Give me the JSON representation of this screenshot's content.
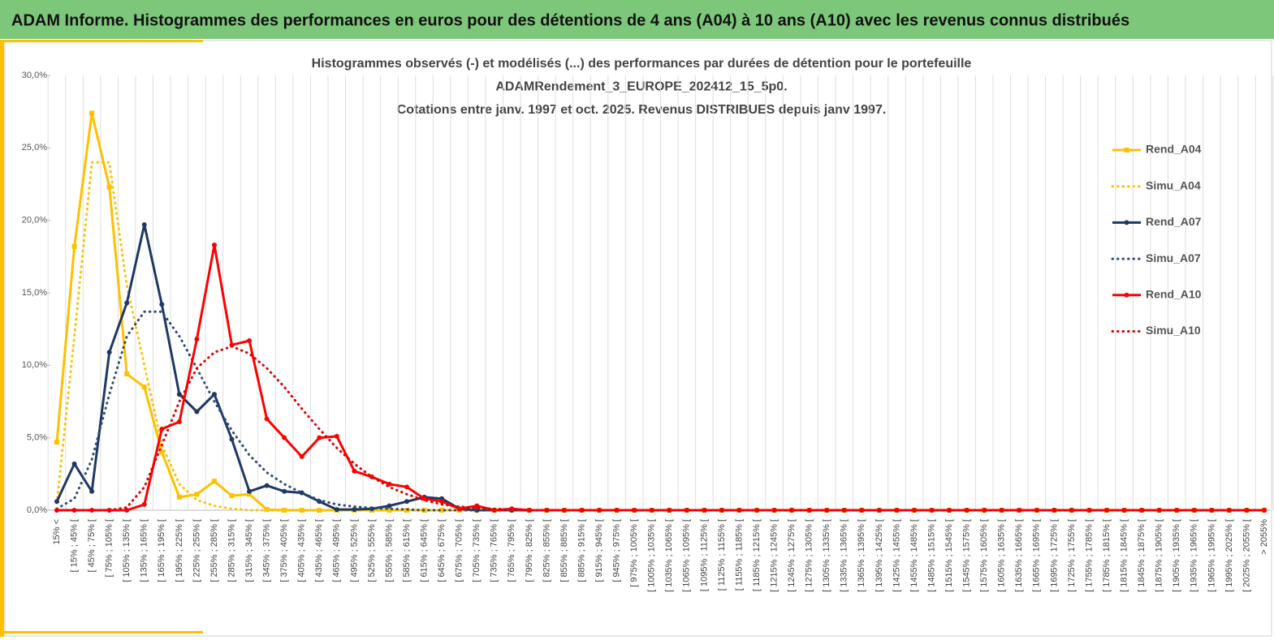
{
  "header": {
    "title": "ADAM Informe. Histogrammes des performances en euros pour des détentions de 4 ans (A04) à 10 ans (A10) avec les revenus connus distribués"
  },
  "chart_data": {
    "type": "line",
    "title": [
      "Histogrammes observés (-) et modélisés (...) des performances par durées de détention pour le portefeuille",
      "ADAMRendement_3_EUROPE_202412_15_5p0.",
      "Cotations entre janv. 1997 et oct. 2025. Revenus DISTRIBUES depuis janv 1997."
    ],
    "categories": [
      "15% <",
      "[ 15% ; 45% [",
      "[ 45% ; 75% [",
      "[ 75% ; 105% [",
      "[ 105% ; 135% [",
      "[ 135% ; 165% [",
      "[ 165% ; 195% [",
      "[ 195% ; 225% [",
      "[ 225% ; 255% [",
      "[ 255% ; 285% [",
      "[ 285% ; 315% [",
      "[ 315% ; 345% [",
      "[ 345% ; 375% [",
      "[ 375% ; 405% [",
      "[ 405% ; 435% [",
      "[ 435% ; 465% [",
      "[ 465% ; 495% [",
      "[ 495% ; 525% [",
      "[ 525% ; 555% [",
      "[ 555% ; 585% [",
      "[ 585% ; 615% [",
      "[ 615% ; 645% [",
      "[ 645% ; 675% [",
      "[ 675% ; 705% [",
      "[ 705% ; 735% [",
      "[ 735% ; 765% [",
      "[ 765% ; 795% [",
      "[ 795% ; 825% [",
      "[ 825% ; 855% [",
      "[ 855% ; 885% [",
      "[ 885% ; 915% [",
      "[ 915% ; 945% [",
      "[ 945% ; 975% [",
      "[ 975% ; 1005% [",
      "[ 1005% ; 1035% [",
      "[ 1035% ; 1065% [",
      "[ 1065% ; 1095% [",
      "[ 1095% ; 1125% [",
      "[ 1125% ; 1155% [",
      "[ 1155% ; 1185% [",
      "[ 1185% ; 1215% [",
      "[ 1215% ; 1245% [",
      "[ 1245% ; 1275% [",
      "[ 1275% ; 1305% [",
      "[ 1305% ; 1335% [",
      "[ 1335% ; 1365% [",
      "[ 1365% ; 1395% [",
      "[ 1395% ; 1425% [",
      "[ 1425% ; 1455% [",
      "[ 1455% ; 1485% [",
      "[ 1485% ; 1515% [",
      "[ 1515% ; 1545% [",
      "[ 1545% ; 1575% [",
      "[ 1575% ; 1605% [",
      "[ 1605% ; 1635% [",
      "[ 1635% ; 1665% [",
      "[ 1665% ; 1695% [",
      "[ 1695% ; 1725% [",
      "[ 1725% ; 1755% [",
      "[ 1755% ; 1785% [",
      "[ 1785% ; 1815% [",
      "[ 1815% ; 1845% [",
      "[ 1845% ; 1875% [",
      "[ 1875% ; 1905% [",
      "[ 1905% ; 1935% [",
      "[ 1935% ; 1965% [",
      "[ 1965% ; 1995% [",
      "[ 1995% ; 2025% [",
      "[ 2025% ; 2055% [",
      "> 2055%"
    ],
    "series": [
      {
        "name": "Rend_A04",
        "color": "#ffc000",
        "style": "solid",
        "marker": "square",
        "values": [
          4.7,
          18.2,
          27.4,
          22.3,
          9.4,
          8.5,
          4.0,
          0.9,
          1.1,
          2.0,
          1.0,
          1.1,
          0.05,
          0,
          0,
          0,
          0,
          0,
          0,
          0,
          0,
          0,
          0,
          0,
          0,
          0,
          0,
          0,
          0,
          0,
          0,
          0,
          0,
          0,
          0,
          0,
          0,
          0,
          0,
          0,
          0,
          0,
          0,
          0,
          0,
          0,
          0,
          0,
          0,
          0,
          0,
          0,
          0,
          0,
          0,
          0,
          0,
          0,
          0,
          0,
          0,
          0,
          0,
          0,
          0,
          0,
          0,
          0,
          0,
          0
        ]
      },
      {
        "name": "Simu_A04",
        "color": "#ffc000",
        "style": "dotted",
        "marker": "none",
        "values": [
          0.5,
          12,
          24,
          24,
          15.5,
          10,
          4.5,
          1.8,
          0.7,
          0.3,
          0.1,
          0,
          0,
          0,
          0,
          0,
          0,
          0,
          0,
          0,
          0,
          0,
          0,
          0,
          0,
          0,
          0,
          0,
          0,
          0,
          0,
          0,
          0,
          0,
          0,
          0,
          0,
          0,
          0,
          0,
          0,
          0,
          0,
          0,
          0,
          0,
          0,
          0,
          0,
          0,
          0,
          0,
          0,
          0,
          0,
          0,
          0,
          0,
          0,
          0,
          0,
          0,
          0,
          0,
          0,
          0,
          0,
          0,
          0,
          0
        ]
      },
      {
        "name": "Rend_A07",
        "color": "#1f3864",
        "style": "solid",
        "marker": "circle",
        "values": [
          0.6,
          3.2,
          1.3,
          10.9,
          14.3,
          19.7,
          14.2,
          8.0,
          6.8,
          8.0,
          4.9,
          1.3,
          1.7,
          1.3,
          1.2,
          0.6,
          0.05,
          0.05,
          0.1,
          0.3,
          0.6,
          0.9,
          0.8,
          0.1,
          0,
          0,
          0,
          0,
          0,
          0,
          0,
          0,
          0,
          0,
          0,
          0,
          0,
          0,
          0,
          0,
          0,
          0,
          0,
          0,
          0,
          0,
          0,
          0,
          0,
          0,
          0,
          0,
          0,
          0,
          0,
          0,
          0,
          0,
          0,
          0,
          0,
          0,
          0,
          0,
          0,
          0,
          0,
          0,
          0,
          0
        ]
      },
      {
        "name": "Simu_A07",
        "color": "#2f4b73",
        "style": "dotted",
        "marker": "none",
        "values": [
          0.1,
          0.8,
          3.5,
          8,
          12,
          13.7,
          13.7,
          12,
          9.8,
          7.5,
          5.5,
          3.8,
          2.6,
          1.8,
          1.2,
          0.7,
          0.4,
          0.25,
          0.15,
          0.1,
          0.05,
          0,
          0,
          0,
          0,
          0,
          0,
          0,
          0,
          0,
          0,
          0,
          0,
          0,
          0,
          0,
          0,
          0,
          0,
          0,
          0,
          0,
          0,
          0,
          0,
          0,
          0,
          0,
          0,
          0,
          0,
          0,
          0,
          0,
          0,
          0,
          0,
          0,
          0,
          0,
          0,
          0,
          0,
          0,
          0,
          0,
          0,
          0,
          0,
          0
        ]
      },
      {
        "name": "Rend_A10",
        "color": "#ff0000",
        "style": "solid",
        "marker": "circle",
        "values": [
          0,
          0,
          0,
          0,
          0,
          0.4,
          5.6,
          6.1,
          11.8,
          18.3,
          11.4,
          11.7,
          6.3,
          5.0,
          3.7,
          5.0,
          5.1,
          2.7,
          2.3,
          1.8,
          1.6,
          0.8,
          0.6,
          0.1,
          0.3,
          0,
          0.1,
          0,
          0,
          0,
          0,
          0,
          0,
          0,
          0,
          0,
          0,
          0,
          0,
          0,
          0,
          0,
          0,
          0,
          0,
          0,
          0,
          0,
          0,
          0,
          0,
          0,
          0,
          0,
          0,
          0,
          0,
          0,
          0,
          0,
          0,
          0,
          0,
          0,
          0,
          0,
          0,
          0,
          0,
          0
        ]
      },
      {
        "name": "Simu_A10",
        "color": "#e00000",
        "style": "dotted",
        "marker": "none",
        "values": [
          0,
          0,
          0,
          0,
          0.2,
          1.6,
          4.5,
          7.5,
          9.8,
          10.9,
          11.3,
          10.8,
          9.8,
          8.5,
          7.0,
          5.6,
          4.3,
          3.2,
          2.3,
          1.6,
          1.1,
          0.7,
          0.4,
          0.25,
          0.15,
          0.1,
          0.05,
          0,
          0,
          0,
          0,
          0,
          0,
          0,
          0,
          0,
          0,
          0,
          0,
          0,
          0,
          0,
          0,
          0,
          0,
          0,
          0,
          0,
          0,
          0,
          0,
          0,
          0,
          0,
          0,
          0,
          0,
          0,
          0,
          0,
          0,
          0,
          0,
          0,
          0,
          0,
          0,
          0,
          0,
          0
        ]
      }
    ],
    "ylim": [
      0,
      30
    ],
    "yticks": [
      {
        "value": 0,
        "label": "0,0%"
      },
      {
        "value": 5,
        "label": "5,0%"
      },
      {
        "value": 10,
        "label": "10,0%"
      },
      {
        "value": 15,
        "label": "15,0%"
      },
      {
        "value": 20,
        "label": "20,0%"
      },
      {
        "value": 25,
        "label": "25,0%"
      },
      {
        "value": 30,
        "label": "30,0%"
      }
    ],
    "xgrid": true,
    "legend": "right"
  }
}
